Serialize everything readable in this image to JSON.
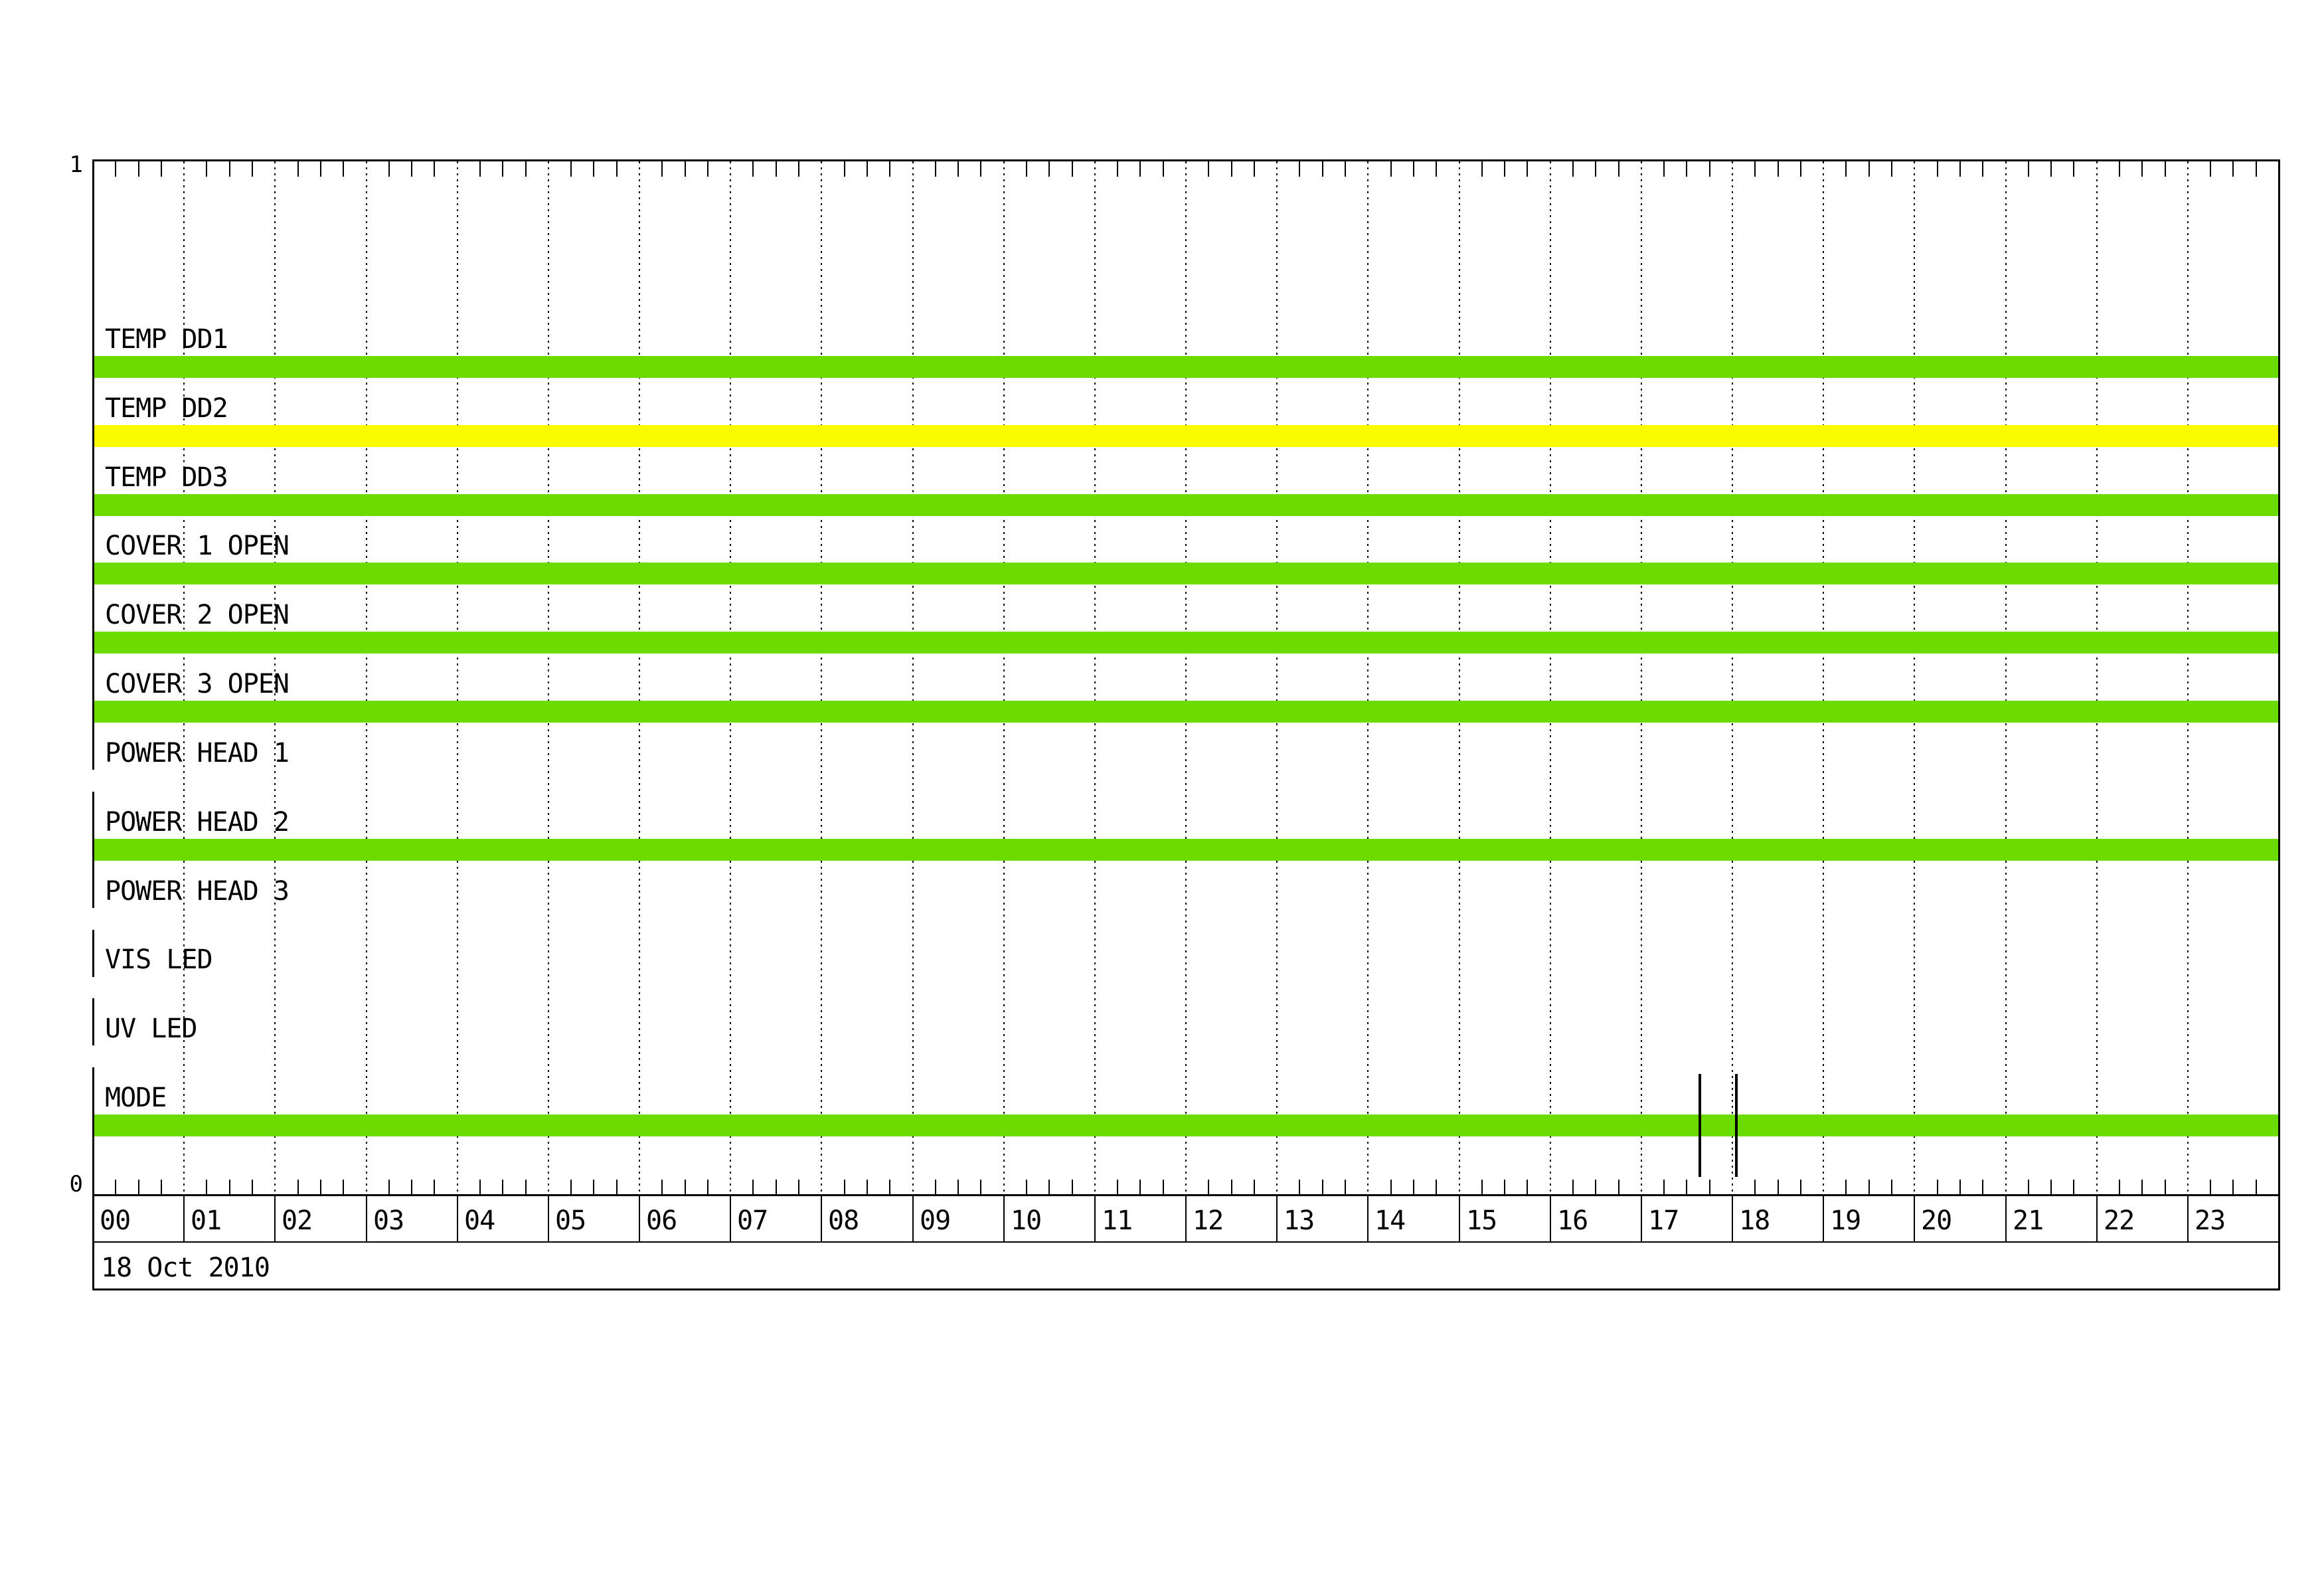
{
  "colors": {
    "bar_green": "#6CDB00",
    "bar_yellow": "#FAFA00",
    "ink": "#000000",
    "background": "#FFFFFF"
  },
  "chart_data": {
    "type": "bar",
    "title": "",
    "x_axis": {
      "unit": "hour",
      "range_hours": [
        0,
        24
      ],
      "tick_labels": [
        "00",
        "01",
        "02",
        "03",
        "04",
        "05",
        "06",
        "07",
        "08",
        "09",
        "10",
        "11",
        "12",
        "13",
        "14",
        "15",
        "16",
        "17",
        "18",
        "19",
        "20",
        "21",
        "22",
        "23"
      ],
      "minor_tick_interval_minutes": 15,
      "date": "18 Oct 2010"
    },
    "y_axis": {
      "min_label": "0",
      "max_label": "1"
    },
    "series": [
      {
        "name": "TEMP DD1",
        "on": 1,
        "color": "green"
      },
      {
        "name": "TEMP DD2",
        "on": 1,
        "color": "yellow"
      },
      {
        "name": "TEMP DD3",
        "on": 1,
        "color": "green"
      },
      {
        "name": "COVER 1 OPEN",
        "on": 1,
        "color": "green"
      },
      {
        "name": "COVER 2 OPEN",
        "on": 1,
        "color": "green"
      },
      {
        "name": "COVER 3 OPEN",
        "on": 1,
        "color": "green"
      },
      {
        "name": "POWER HEAD 1",
        "on": 0,
        "color": null
      },
      {
        "name": "POWER HEAD 2",
        "on": 1,
        "color": "green"
      },
      {
        "name": "POWER HEAD 3",
        "on": 0,
        "color": null
      },
      {
        "name": "VIS LED",
        "on": 0,
        "color": null
      },
      {
        "name": "UV LED",
        "on": 0,
        "color": null
      },
      {
        "name": "MODE",
        "on": 1,
        "color": "green"
      }
    ],
    "events": [
      {
        "channel": "MODE",
        "hour_decimal": 17.65
      },
      {
        "channel": "MODE",
        "hour_decimal": 18.05
      }
    ]
  }
}
